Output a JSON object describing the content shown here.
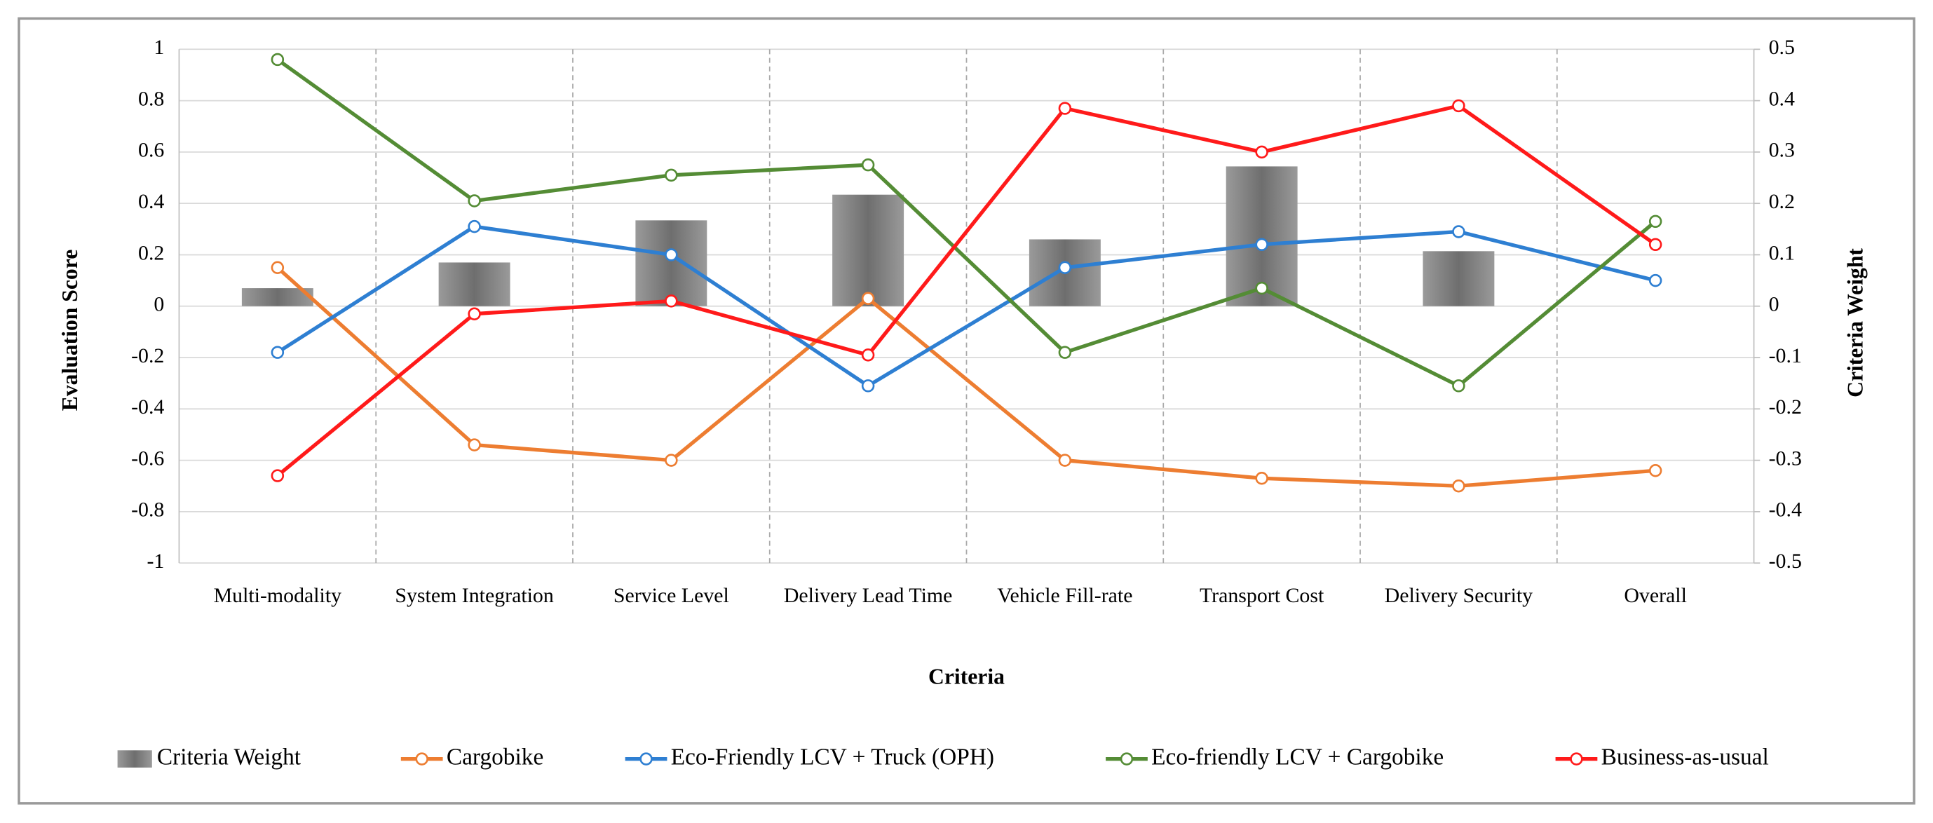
{
  "chart_data": {
    "type": "bar-line",
    "xlabel": "Criteria",
    "ylabel": "Evaluation Score",
    "y2label": "Criteria Weight",
    "categories": [
      "Multi-modality",
      "System Integration",
      "Service Level",
      "Delivery Lead Time",
      "Vehicle Fill-rate",
      "Transport Cost",
      "Delivery Security",
      "Overall"
    ],
    "series": [
      {
        "name": "Criteria Weight",
        "type": "bar",
        "axis": "y2",
        "color": "#8c8c8c",
        "values": [
          0.035,
          0.085,
          0.167,
          0.217,
          0.13,
          0.272,
          0.107,
          null
        ]
      },
      {
        "name": "Cargobike",
        "type": "line",
        "color": "#ed7d31",
        "values": [
          0.15,
          -0.54,
          -0.6,
          0.03,
          -0.6,
          -0.67,
          -0.7,
          -0.64
        ]
      },
      {
        "name": "Eco-Friendly LCV + Truck (OPH)",
        "type": "line",
        "color": "#2e7fd2",
        "values": [
          -0.18,
          0.31,
          0.2,
          -0.31,
          0.15,
          0.24,
          0.29,
          0.1
        ]
      },
      {
        "name": "Eco-friendly LCV + Cargobike",
        "type": "line",
        "color": "#548c35",
        "values": [
          0.96,
          0.41,
          0.51,
          0.55,
          -0.18,
          0.07,
          -0.31,
          0.33
        ]
      },
      {
        "name": "Business-as-usual",
        "type": "line",
        "color": "#ff1a1a",
        "values": [
          -0.66,
          -0.03,
          0.02,
          -0.19,
          0.77,
          0.6,
          0.78,
          0.24
        ]
      }
    ],
    "ylim": [
      -1,
      1
    ],
    "yticks": [
      -1,
      -0.8,
      -0.6,
      -0.4,
      -0.2,
      0,
      0.2,
      0.4,
      0.6,
      0.8,
      1
    ],
    "y2lim": [
      -0.5,
      0.5
    ],
    "y2ticks": [
      -0.5,
      -0.4,
      -0.3,
      -0.2,
      -0.1,
      0,
      0.1,
      0.2,
      0.3,
      0.4,
      0.5
    ],
    "grid": true,
    "legend": "bottom"
  }
}
